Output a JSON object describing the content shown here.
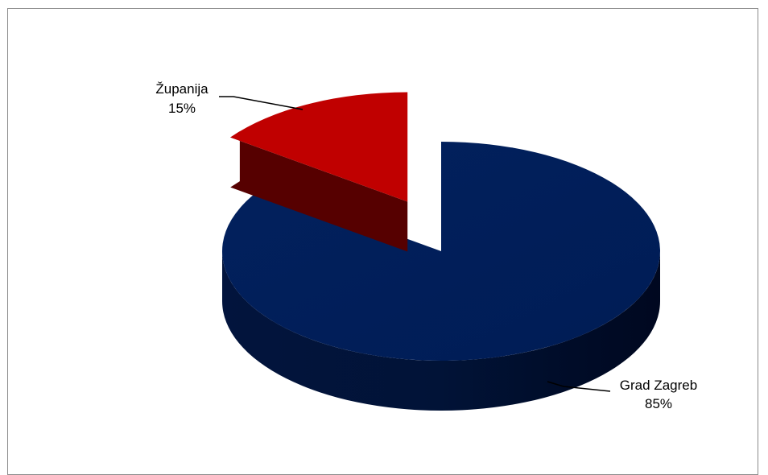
{
  "chart_data": {
    "type": "pie",
    "style": "3d-exploded",
    "title": "",
    "slices": [
      {
        "label": "Grad Zagreb",
        "value": 85,
        "value_label": "85%",
        "color": "#002060",
        "side_color": "#001035"
      },
      {
        "label": "Županija",
        "value": 15,
        "value_label": "15%",
        "color": "#c00000",
        "side_color": "#560000"
      }
    ],
    "legend": "none",
    "data_labels": "outside-with-leader-lines"
  }
}
